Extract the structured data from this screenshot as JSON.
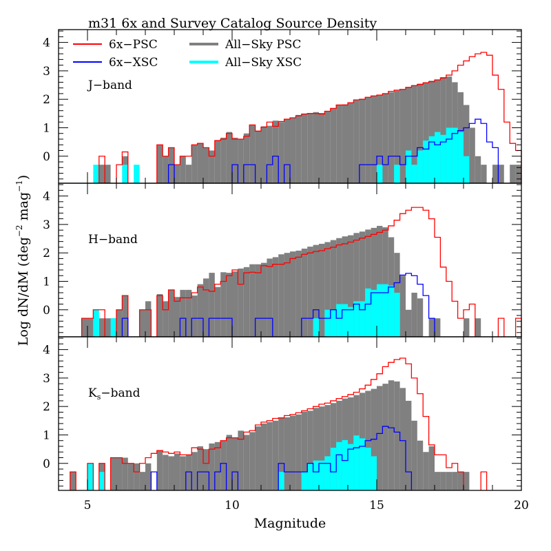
{
  "chart_data": {
    "type": "bar",
    "title": "m31  6x and Survey Catalog Source Density",
    "xlabel": "Magnitude",
    "ylabel": "Log dN/dM (deg^-2 mag^-1)",
    "ylabel_parts": {
      "main": "Log dN/dM (deg",
      "exp1": "−2",
      "mid": " mag",
      "exp2": "−1",
      "end": ")"
    },
    "xlim": [
      4,
      20
    ],
    "ylim": [
      -0.95,
      4.45
    ],
    "bin_start": 4.0,
    "bin_width": 0.2,
    "x_ticks": [
      5,
      10,
      15,
      20
    ],
    "y_ticks": [
      0,
      1,
      2,
      3,
      4
    ],
    "legend": {
      "placement": "top-left",
      "entries": [
        {
          "label": "6x−PSC",
          "color": "#ff0000",
          "style": "step"
        },
        {
          "label": "All−Sky PSC",
          "color": "#808080",
          "style": "filled"
        },
        {
          "label": "6x−XSC",
          "color": "#0000ff",
          "style": "step"
        },
        {
          "label": "All−Sky XSC",
          "color": "#00ffff",
          "style": "filled"
        }
      ]
    },
    "panels": [
      {
        "band": "J−band",
        "band_main": "J−band",
        "band_sub": "",
        "series": {
          "allsky_psc": [
            null,
            null,
            null,
            null,
            null,
            null,
            null,
            -0.3,
            -0.3,
            null,
            null,
            0,
            null,
            null,
            null,
            null,
            null,
            0.4,
            0.0,
            0.3,
            -0.3,
            0.0,
            -0.3,
            0.4,
            0.45,
            0.3,
            0.2,
            0.55,
            0.65,
            0.85,
            0.65,
            0.6,
            0.8,
            1.1,
            0.9,
            1.05,
            1.07,
            1.25,
            1.2,
            1.3,
            1.35,
            1.45,
            1.5,
            1.52,
            1.55,
            1.52,
            1.58,
            1.68,
            1.8,
            1.82,
            1.88,
            1.98,
            2.02,
            2.08,
            2.12,
            2.15,
            2.2,
            2.25,
            2.3,
            2.35,
            2.42,
            2.5,
            2.55,
            2.6,
            2.65,
            2.7,
            2.78,
            2.8,
            2.6,
            2.25,
            1.8,
            1.0,
            0.0,
            -0.3,
            null,
            -0.3,
            -0.3,
            null,
            -0.3,
            -0.3
          ],
          "allsky_xsc": [
            null,
            null,
            null,
            null,
            null,
            null,
            -0.3,
            null,
            null,
            null,
            null,
            -0.3,
            null,
            -0.3,
            null,
            null,
            null,
            null,
            null,
            null,
            null,
            null,
            null,
            null,
            null,
            null,
            null,
            null,
            null,
            null,
            null,
            null,
            null,
            null,
            null,
            null,
            null,
            null,
            null,
            null,
            null,
            null,
            null,
            null,
            null,
            null,
            null,
            null,
            null,
            null,
            null,
            null,
            null,
            null,
            null,
            -0.3,
            null,
            null,
            -0.3,
            null,
            0.2,
            -0.3,
            0.2,
            0.55,
            0.7,
            0.85,
            0.75,
            1.0,
            1.0,
            0.85,
            0.0,
            null,
            null,
            null,
            null,
            null,
            null,
            null,
            null,
            null
          ],
          "six_psc": [
            null,
            null,
            null,
            null,
            null,
            null,
            null,
            0.0,
            null,
            null,
            -0.3,
            0.15,
            null,
            null,
            null,
            null,
            null,
            0.4,
            0.0,
            0.3,
            -0.3,
            0.0,
            0.0,
            0.4,
            0.45,
            0.3,
            0.0,
            0.55,
            0.6,
            0.8,
            0.6,
            0.6,
            0.7,
            1.1,
            0.88,
            1.02,
            1.2,
            1.05,
            1.22,
            1.3,
            1.35,
            1.42,
            1.48,
            1.5,
            1.5,
            1.48,
            1.58,
            1.68,
            1.8,
            1.8,
            1.88,
            1.98,
            2.0,
            2.07,
            2.12,
            2.15,
            2.2,
            2.28,
            2.32,
            2.35,
            2.42,
            2.48,
            2.52,
            2.58,
            2.62,
            2.68,
            2.75,
            2.85,
            3.0,
            3.2,
            3.35,
            3.5,
            3.6,
            3.65,
            3.55,
            2.85,
            2.35,
            1.2,
            0.45,
            0.2
          ],
          "six_xsc": [
            null,
            null,
            null,
            null,
            null,
            null,
            null,
            null,
            null,
            null,
            null,
            null,
            null,
            null,
            null,
            null,
            null,
            null,
            null,
            -0.3,
            null,
            null,
            null,
            null,
            null,
            null,
            null,
            null,
            null,
            null,
            -0.3,
            null,
            -0.3,
            -0.3,
            null,
            null,
            -0.3,
            0.0,
            null,
            -0.3,
            null,
            null,
            null,
            null,
            null,
            null,
            null,
            null,
            null,
            null,
            null,
            null,
            -0.3,
            -0.3,
            -0.3,
            0.0,
            -0.3,
            0.0,
            0.0,
            -0.3,
            0.0,
            0.0,
            0.3,
            0.25,
            0.5,
            0.4,
            0.5,
            0.6,
            0.8,
            0.9,
            1.0,
            1.15,
            1.3,
            1.15,
            0.5,
            0.3,
            null,
            null,
            null,
            null
          ]
        }
      },
      {
        "band": "H−band",
        "band_main": "H−band",
        "band_sub": "",
        "series": {
          "allsky_psc": [
            null,
            null,
            null,
            null,
            -0.3,
            -0.3,
            null,
            -0.3,
            -0.3,
            -0.3,
            0.0,
            0.5,
            null,
            null,
            0.0,
            0.3,
            null,
            0.55,
            0.3,
            0.7,
            0.45,
            0.7,
            0.7,
            0.5,
            0.9,
            1.1,
            1.3,
            0.8,
            1.32,
            1.3,
            1.35,
            1.45,
            1.5,
            1.6,
            1.6,
            1.65,
            1.8,
            1.85,
            1.95,
            2.0,
            2.05,
            2.08,
            2.15,
            2.22,
            2.28,
            2.32,
            2.38,
            2.45,
            2.52,
            2.58,
            2.62,
            2.7,
            2.75,
            2.82,
            2.88,
            2.95,
            2.9,
            2.55,
            2.0,
            1.2,
            0.0,
            0.6,
            0.4,
            null,
            -0.3,
            -0.3,
            null,
            null,
            null,
            null,
            -0.3,
            null,
            -0.3,
            null,
            null,
            null,
            null,
            null,
            null,
            null
          ],
          "allsky_xsc": [
            null,
            null,
            null,
            null,
            null,
            null,
            0.0,
            null,
            null,
            -0.3,
            null,
            null,
            null,
            null,
            null,
            null,
            null,
            null,
            null,
            null,
            null,
            null,
            null,
            null,
            null,
            null,
            null,
            null,
            null,
            null,
            null,
            null,
            null,
            null,
            null,
            null,
            null,
            null,
            null,
            null,
            null,
            null,
            null,
            null,
            -0.3,
            null,
            0.0,
            0.0,
            0.2,
            0.2,
            0.1,
            0.3,
            0.3,
            0.75,
            0.7,
            0.9,
            0.9,
            0.85,
            0.6,
            null,
            null,
            null,
            null,
            null,
            null,
            null,
            null,
            null,
            null,
            null,
            null,
            null,
            null,
            null,
            null,
            null,
            null,
            null,
            null,
            null
          ],
          "six_psc": [
            null,
            null,
            null,
            null,
            -0.3,
            -0.3,
            0.0,
            0.0,
            null,
            null,
            0.0,
            0.5,
            null,
            null,
            0.0,
            0.0,
            null,
            0.5,
            0.0,
            0.7,
            0.3,
            0.42,
            0.42,
            0.6,
            0.8,
            0.7,
            0.65,
            0.9,
            1.0,
            1.2,
            1.4,
            0.9,
            1.3,
            1.32,
            1.3,
            1.55,
            1.52,
            1.6,
            1.6,
            1.65,
            1.8,
            1.85,
            1.95,
            2.0,
            2.05,
            2.08,
            2.15,
            2.2,
            2.28,
            2.32,
            2.38,
            2.45,
            2.52,
            2.58,
            2.65,
            2.72,
            2.8,
            2.95,
            3.15,
            3.38,
            3.5,
            3.6,
            3.6,
            3.5,
            3.2,
            2.55,
            1.5,
            1.0,
            0.3,
            -0.3,
            0.0,
            0.2,
            null,
            null,
            null,
            null,
            -0.3,
            null,
            null,
            -0.3
          ],
          "six_xsc": [
            null,
            null,
            null,
            null,
            null,
            null,
            null,
            null,
            null,
            null,
            null,
            -0.3,
            null,
            null,
            null,
            null,
            null,
            null,
            null,
            null,
            null,
            -0.3,
            null,
            -0.3,
            -0.3,
            null,
            -0.3,
            -0.3,
            -0.3,
            -0.3,
            null,
            null,
            null,
            null,
            -0.3,
            -0.3,
            -0.3,
            null,
            null,
            null,
            null,
            null,
            -0.3,
            -0.3,
            0.0,
            -0.3,
            -0.3,
            0.0,
            -0.3,
            0.0,
            0.0,
            0.2,
            0.0,
            0.2,
            0.6,
            0.6,
            0.6,
            0.8,
            0.95,
            1.22,
            1.28,
            1.2,
            0.9,
            0.5,
            -0.3,
            null,
            null,
            null,
            null,
            null,
            null,
            null,
            null,
            null,
            null,
            null,
            null,
            null,
            null,
            null
          ]
        }
      },
      {
        "band": "Ks−band",
        "band_main": "K",
        "band_sub": "s",
        "band_tail": "−band",
        "series": {
          "allsky_psc": [
            null,
            null,
            -0.3,
            null,
            null,
            0.0,
            null,
            0.0,
            null,
            0.2,
            0.2,
            0.2,
            0.0,
            0.0,
            -0.3,
            0.0,
            null,
            0.45,
            0.3,
            0.25,
            0.35,
            0.25,
            0.3,
            0.4,
            0.6,
            0.5,
            0.7,
            0.75,
            0.8,
            1.0,
            0.9,
            1.15,
            1.0,
            1.1,
            1.3,
            1.4,
            1.45,
            1.5,
            1.6,
            1.62,
            1.68,
            1.72,
            1.82,
            1.85,
            1.95,
            2.0,
            2.05,
            2.12,
            2.2,
            2.28,
            2.32,
            2.4,
            2.48,
            2.55,
            2.62,
            2.72,
            2.8,
            2.92,
            2.88,
            2.65,
            2.2,
            1.5,
            0.8,
            0.4,
            0.6,
            -0.3,
            -0.3,
            -0.3,
            -0.3,
            -0.3,
            -0.3,
            null,
            null,
            null,
            null,
            null,
            null,
            null,
            null,
            null
          ],
          "allsky_xsc": [
            null,
            null,
            null,
            null,
            null,
            0.0,
            null,
            -0.3,
            null,
            null,
            null,
            null,
            null,
            null,
            null,
            null,
            null,
            null,
            null,
            null,
            null,
            null,
            null,
            null,
            null,
            null,
            null,
            null,
            null,
            null,
            null,
            null,
            null,
            null,
            null,
            null,
            null,
            null,
            -0.3,
            null,
            null,
            null,
            -0.3,
            0.0,
            0.1,
            0.1,
            0.25,
            0.55,
            0.75,
            0.82,
            0.68,
            0.98,
            0.88,
            0.55,
            0.25,
            null,
            null,
            null,
            null,
            null,
            null,
            null,
            null,
            null,
            null,
            null,
            null,
            null,
            null,
            null,
            null,
            null,
            null,
            null,
            null,
            null,
            null,
            null,
            null,
            null
          ],
          "six_psc": [
            null,
            null,
            -0.3,
            null,
            null,
            0.0,
            null,
            0.0,
            null,
            0.2,
            0.2,
            0.0,
            0.0,
            -0.3,
            0.0,
            0.2,
            0.35,
            0.45,
            0.4,
            0.35,
            0.4,
            0.3,
            0.3,
            0.55,
            0.5,
            0.0,
            0.5,
            0.55,
            0.8,
            0.9,
            0.9,
            0.85,
            1.1,
            1.15,
            1.35,
            1.45,
            1.5,
            1.58,
            1.6,
            1.68,
            1.72,
            1.78,
            1.85,
            1.92,
            2.0,
            2.08,
            2.12,
            2.2,
            2.28,
            2.35,
            2.42,
            2.5,
            2.62,
            2.75,
            2.95,
            3.15,
            3.4,
            3.55,
            3.65,
            3.7,
            3.5,
            3.0,
            2.45,
            1.65,
            0.65,
            0.3,
            0.3,
            -0.15,
            0.0,
            -0.3,
            null,
            null,
            null,
            -0.3,
            null,
            null,
            null,
            null,
            null,
            null
          ],
          "six_xsc": [
            null,
            null,
            null,
            null,
            null,
            null,
            null,
            null,
            null,
            null,
            null,
            null,
            null,
            null,
            null,
            null,
            -0.3,
            null,
            null,
            null,
            null,
            null,
            -0.3,
            null,
            -0.3,
            -0.3,
            null,
            -0.3,
            0.0,
            null,
            -0.3,
            null,
            null,
            null,
            null,
            null,
            null,
            null,
            0.0,
            -0.3,
            -0.3,
            -0.3,
            -0.3,
            0.0,
            -0.3,
            0.0,
            0.0,
            -0.3,
            0.3,
            0.1,
            0.5,
            0.55,
            0.6,
            0.8,
            0.85,
            1.05,
            1.3,
            1.25,
            1.1,
            0.8,
            -0.3,
            null,
            null,
            null,
            null,
            null,
            null,
            null,
            null,
            null,
            null,
            null,
            null,
            null,
            null,
            null,
            null,
            null,
            null,
            null
          ]
        }
      }
    ]
  }
}
